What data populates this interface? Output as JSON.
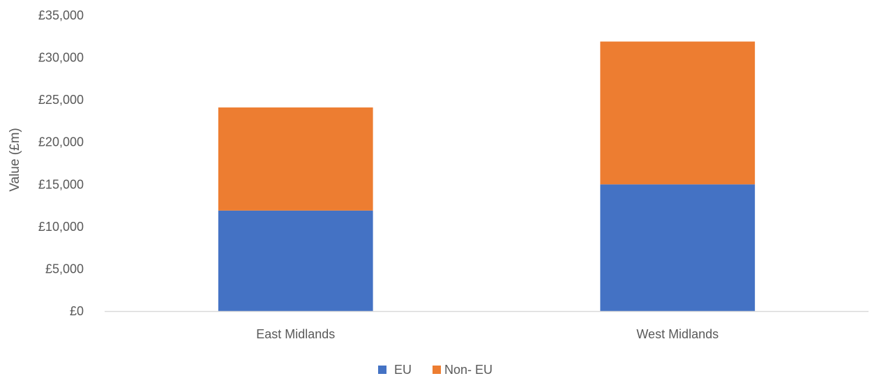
{
  "chart_data": {
    "type": "bar",
    "stacked": true,
    "categories": [
      "East Midlands",
      "West Midlands"
    ],
    "series": [
      {
        "name": "EU",
        "values": [
          11900,
          15000
        ],
        "color": "#4472C4"
      },
      {
        "name": "Non- EU",
        "values": [
          12200,
          16900
        ],
        "color": "#ED7D31"
      }
    ],
    "ylabel": "Value (£m)",
    "ylim": [
      0,
      35000
    ],
    "yticks": [
      0,
      5000,
      10000,
      15000,
      20000,
      25000,
      30000,
      35000
    ],
    "ytick_labels": [
      "£0",
      "£5,000",
      "£10,000",
      "£15,000",
      "£20,000",
      "£25,000",
      "£30,000",
      "£35,000"
    ],
    "grid": false,
    "legend_position": "bottom",
    "axis_color": "#D9D9D9"
  }
}
